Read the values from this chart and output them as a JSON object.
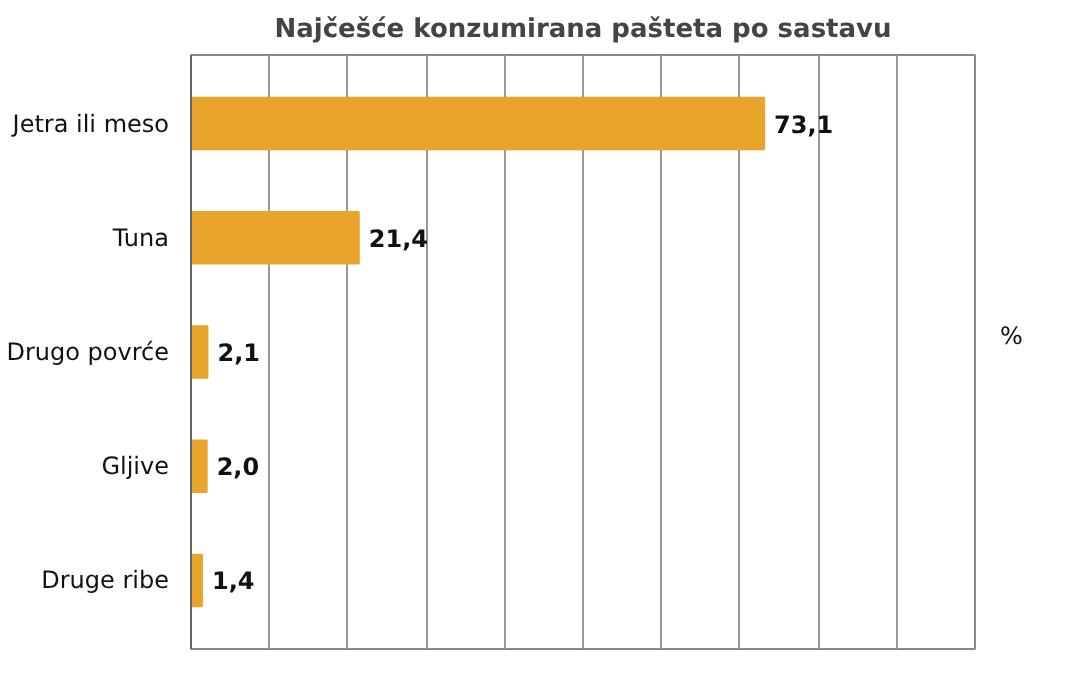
{
  "chart_data": {
    "type": "bar",
    "orientation": "horizontal",
    "title": "Najčešće konzumirana pašteta po sastavu",
    "annotations": [
      "%"
    ],
    "categories": [
      "Jetra ili meso",
      "Tuna",
      "Drugo povrće",
      "Gljive",
      "Druge ribe"
    ],
    "values": [
      73.1,
      21.4,
      2.1,
      2.0,
      1.4
    ],
    "value_labels": [
      "73,1",
      "21,4",
      "2,1",
      "2,0",
      "1,4"
    ],
    "color": "#e9a42c",
    "xlim": [
      0,
      100
    ],
    "xticks": [
      {
        "value": 0,
        "label": null
      },
      {
        "value": 10,
        "label": null
      },
      {
        "value": 20,
        "label": null
      },
      {
        "value": 30,
        "label": null
      },
      {
        "value": 40,
        "label": null
      },
      {
        "value": 50,
        "label": null
      },
      {
        "value": 60,
        "label": null
      },
      {
        "value": 70,
        "label": null
      },
      {
        "value": 80,
        "label": null
      },
      {
        "value": 90,
        "label": null
      },
      {
        "value": 100,
        "label": null
      }
    ],
    "grid": "x"
  }
}
